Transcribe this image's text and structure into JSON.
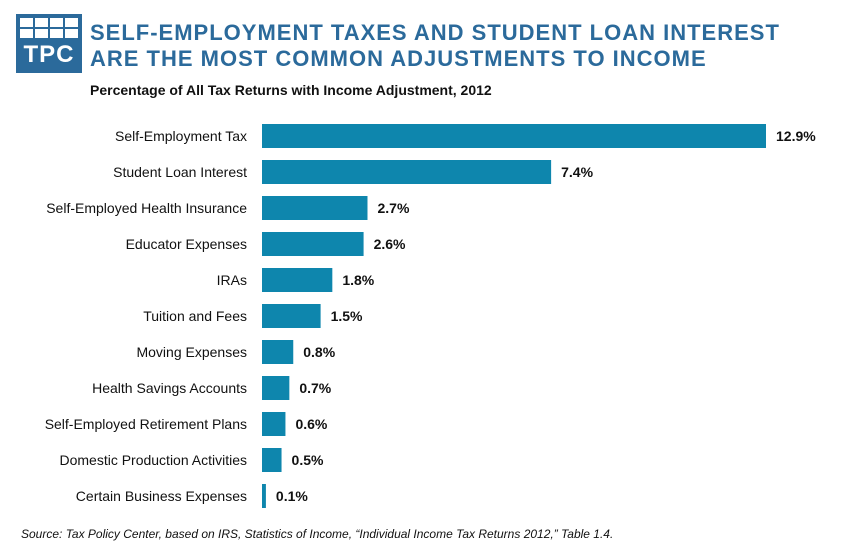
{
  "header": {
    "logo_text": "TPC",
    "title_line1": "SELF-EMPLOYMENT TAXES AND STUDENT LOAN INTEREST",
    "title_line2": "ARE THE MOST COMMON ADJUSTMENTS TO INCOME"
  },
  "chart_data": {
    "type": "bar",
    "orientation": "horizontal",
    "title": "Percentage of All Tax Returns with Income Adjustment, 2012",
    "categories": [
      "Self-Employment Tax",
      "Student Loan Interest",
      "Self-Employed Health Insurance",
      "Educator Expenses",
      "IRAs",
      "Tuition and Fees",
      "Moving Expenses",
      "Health Savings Accounts",
      "Self-Employed Retirement Plans",
      "Domestic Production Activities",
      "Certain Business Expenses"
    ],
    "values": [
      12.9,
      7.4,
      2.7,
      2.6,
      1.8,
      1.5,
      0.8,
      0.7,
      0.6,
      0.5,
      0.1
    ],
    "data_labels": [
      "12.9%",
      "7.4%",
      "2.7%",
      "2.6%",
      "1.8%",
      "1.5%",
      "0.8%",
      "0.7%",
      "0.6%",
      "0.5%",
      "0.1%"
    ],
    "bar_color": "#0e86ad",
    "xlim": [
      0,
      12.9
    ],
    "grid": false
  },
  "source": "Source: Tax Policy Center,  based on IRS, Statistics  of Income, “Individual Income Tax Returns 2012,” Table 1.4."
}
